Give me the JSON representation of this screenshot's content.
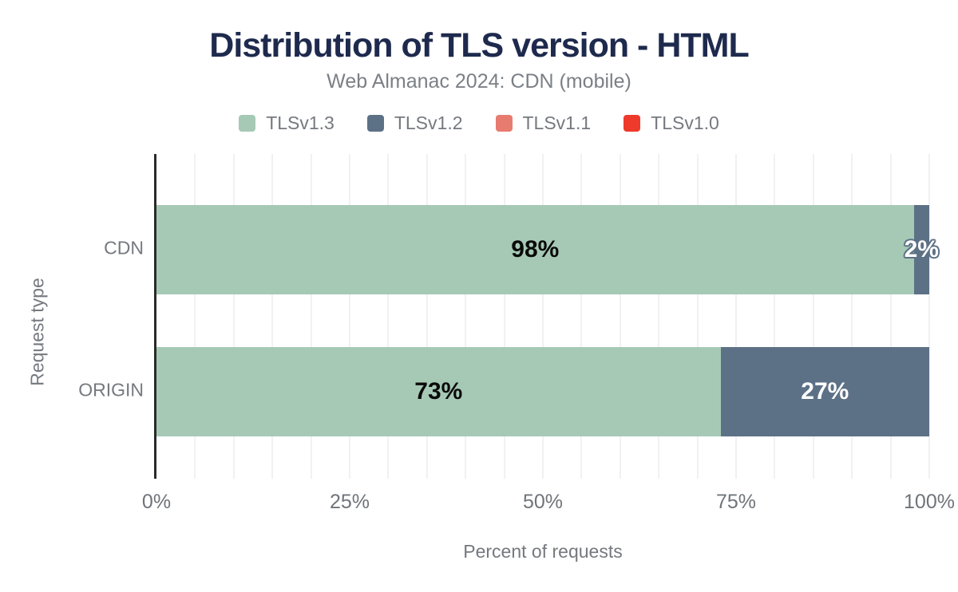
{
  "chart_data": {
    "type": "bar",
    "orientation": "horizontal",
    "stacked": true,
    "title": "Distribution of TLS version - HTML",
    "subtitle": "Web Almanac 2024: CDN (mobile)",
    "xlabel": "Percent of requests",
    "ylabel": "Request type",
    "categories": [
      "CDN",
      "ORIGIN"
    ],
    "series": [
      {
        "name": "TLSv1.3",
        "color": "#a6c9b5",
        "values": [
          98,
          73
        ]
      },
      {
        "name": "TLSv1.2",
        "color": "#5d7186",
        "values": [
          2,
          27
        ]
      },
      {
        "name": "TLSv1.1",
        "color": "#e87b70",
        "values": [
          0,
          0
        ]
      },
      {
        "name": "TLSv1.0",
        "color": "#ee3a2b",
        "values": [
          0,
          0
        ]
      }
    ],
    "bar_labels": [
      [
        "98%",
        "2%",
        "",
        ""
      ],
      [
        "73%",
        "27%",
        "",
        ""
      ]
    ],
    "x_ticks": [
      {
        "label": "0%",
        "value": 0
      },
      {
        "label": "25%",
        "value": 25
      },
      {
        "label": "50%",
        "value": 50
      },
      {
        "label": "75%",
        "value": 75
      },
      {
        "label": "100%",
        "value": 100
      }
    ],
    "xlim": [
      0,
      100
    ],
    "grid_step_percent": 5,
    "grid": "vertical",
    "legend_position": "top"
  },
  "colors": {
    "background": "#ffffff",
    "title": "#1e2a4d",
    "axis_text": "#75797f",
    "axis_line": "#2a2a2a",
    "gridline": "#f1f1f1",
    "label_dark": "#0a0a0a",
    "label_light": "#ffffff"
  }
}
